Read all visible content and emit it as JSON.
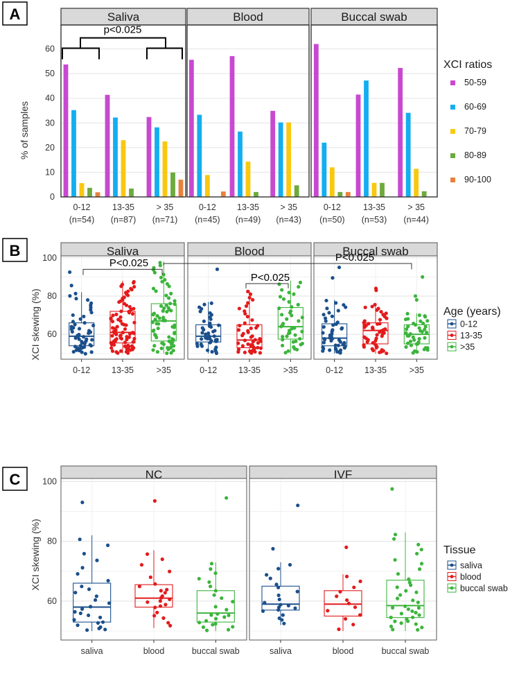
{
  "chart_data": [
    {
      "panel": "A",
      "type": "bar",
      "ylabel": "% of samples",
      "ylim": [
        0,
        70
      ],
      "yticks": [
        0,
        10,
        20,
        30,
        40,
        50,
        60
      ],
      "legend_title": "XCI ratios",
      "series_names": [
        "50-59",
        "60-69",
        "70-79",
        "80-89",
        "90-100"
      ],
      "colors": [
        "#c849d0",
        "#13aef0",
        "#f9c80f",
        "#6daa3e",
        "#e6823e"
      ],
      "facets": [
        {
          "title": "Saliva",
          "groups": [
            {
              "label": "0-12",
              "n": "(n=54)",
              "values": [
                53.7,
                35.2,
                5.6,
                3.7,
                1.9
              ]
            },
            {
              "label": "13-35",
              "n": "(n=87)",
              "values": [
                41.4,
                32.2,
                23.0,
                3.4,
                0
              ]
            },
            {
              "label": "> 35",
              "n": "(n=71)",
              "values": [
                32.4,
                28.2,
                22.5,
                9.9,
                7.0
              ]
            }
          ]
        },
        {
          "title": "Blood",
          "groups": [
            {
              "label": "0-12",
              "n": "(n=45)",
              "values": [
                55.6,
                33.3,
                8.9,
                0,
                2.2
              ]
            },
            {
              "label": "13-35",
              "n": "(n=49)",
              "values": [
                57.1,
                26.5,
                14.3,
                2.0,
                0
              ]
            },
            {
              "label": "> 35",
              "n": "(n=43)",
              "values": [
                34.9,
                30.2,
                30.2,
                4.7,
                0
              ]
            }
          ]
        },
        {
          "title": "Buccal swab",
          "groups": [
            {
              "label": "0-12",
              "n": "(n=50)",
              "values": [
                62.0,
                22.0,
                12.0,
                2.0,
                2.0
              ]
            },
            {
              "label": "13-35",
              "n": "(n=53)",
              "values": [
                41.5,
                47.2,
                5.7,
                5.7,
                0
              ]
            },
            {
              "label": "> 35",
              "n": "(n=44)",
              "values": [
                52.3,
                34.1,
                11.4,
                2.3,
                0
              ]
            }
          ]
        }
      ],
      "annotation": "p<0.025"
    },
    {
      "panel": "B",
      "type": "boxplot",
      "ylabel": "XCI skewing (%)",
      "ylim": [
        47,
        101
      ],
      "yticks": [
        60,
        80,
        100
      ],
      "legend_title": "Age (years)",
      "legend_labels": [
        "0-12",
        "13-35",
        ">35"
      ],
      "colors": [
        "#1a4f8b",
        "#e31a1c",
        "#3cb43c"
      ],
      "facets": [
        {
          "title": "Saliva",
          "categories": [
            "0-12",
            "13-35",
            ">35"
          ],
          "boxes": [
            {
              "q1": 54,
              "med": 59,
              "q3": 66,
              "lo": 50,
              "hi": 82,
              "out": [
                85.5,
                92.5
              ],
              "n": 54
            },
            {
              "q1": 55.5,
              "med": 61,
              "q3": 72,
              "lo": 50,
              "hi": 88,
              "out": [],
              "n": 87
            },
            {
              "q1": 56.5,
              "med": 67,
              "q3": 76,
              "lo": 50,
              "hi": 98,
              "out": [],
              "n": 71
            }
          ]
        },
        {
          "title": "Blood",
          "categories": [
            "0-12",
            "13-35",
            ">35"
          ],
          "boxes": [
            {
              "q1": 56,
              "med": 59,
              "q3": 65,
              "lo": 50,
              "hi": 77,
              "out": [
                94
              ],
              "n": 45
            },
            {
              "q1": 53,
              "med": 57,
              "q3": 65,
              "lo": 50,
              "hi": 83,
              "out": [],
              "n": 49
            },
            {
              "q1": 57.5,
              "med": 64,
              "q3": 74,
              "lo": 50,
              "hi": 88,
              "out": [],
              "n": 43
            }
          ]
        },
        {
          "title": "Buccal swab",
          "categories": [
            "0-12",
            "13-35",
            ">35"
          ],
          "boxes": [
            {
              "q1": 54,
              "med": 58,
              "q3": 65.5,
              "lo": 50,
              "hi": 78,
              "out": [
                89.5,
                95
              ],
              "n": 50
            },
            {
              "q1": 55,
              "med": 62,
              "q3": 66,
              "lo": 50,
              "hi": 76,
              "out": [
                83,
                84
              ],
              "n": 53
            },
            {
              "q1": 55,
              "med": 60,
              "q3": 65,
              "lo": 50,
              "hi": 71,
              "out": [
                78,
                80,
                90
              ],
              "n": 44
            }
          ]
        }
      ],
      "annotations": [
        "P<0.025",
        "P<0.025",
        "P<0.025"
      ]
    },
    {
      "panel": "C",
      "type": "boxplot",
      "ylabel": "XCI skewing (%)",
      "ylim": [
        47,
        101
      ],
      "yticks": [
        60,
        80,
        100
      ],
      "legend_title": "Tissue",
      "legend_labels": [
        "saliva",
        "blood",
        "buccal swab"
      ],
      "colors": [
        "#1a4f8b",
        "#e31a1c",
        "#3cb43c"
      ],
      "facets": [
        {
          "title": "NC",
          "categories": [
            "saliva",
            "blood",
            "buccal swab"
          ],
          "boxes": [
            {
              "q1": 53,
              "med": 58,
              "q3": 66,
              "lo": 50,
              "hi": 82,
              "out": [
                93
              ],
              "n": 28
            },
            {
              "q1": 58,
              "med": 61,
              "q3": 65.5,
              "lo": 51,
              "hi": 77,
              "out": [
                93.5
              ],
              "n": 24
            },
            {
              "q1": 53,
              "med": 56,
              "q3": 63.5,
              "lo": 50,
              "hi": 73,
              "out": [
                94.5
              ],
              "n": 26
            }
          ]
        },
        {
          "title": "IVF",
          "categories": [
            "saliva",
            "blood",
            "buccal swab"
          ],
          "boxes": [
            {
              "q1": 57,
              "med": 59,
              "q3": 65,
              "lo": 52,
              "hi": 73,
              "out": [
                77.5,
                92
              ],
              "n": 22
            },
            {
              "q1": 55,
              "med": 59,
              "q3": 63.5,
              "lo": 50,
              "hi": 69,
              "out": [
                78
              ],
              "n": 14
            },
            {
              "q1": 54.5,
              "med": 58.5,
              "q3": 67,
              "lo": 50,
              "hi": 83,
              "out": [
                97.5
              ],
              "n": 40
            }
          ]
        }
      ]
    }
  ],
  "panel_labels": [
    "A",
    "B",
    "C"
  ]
}
